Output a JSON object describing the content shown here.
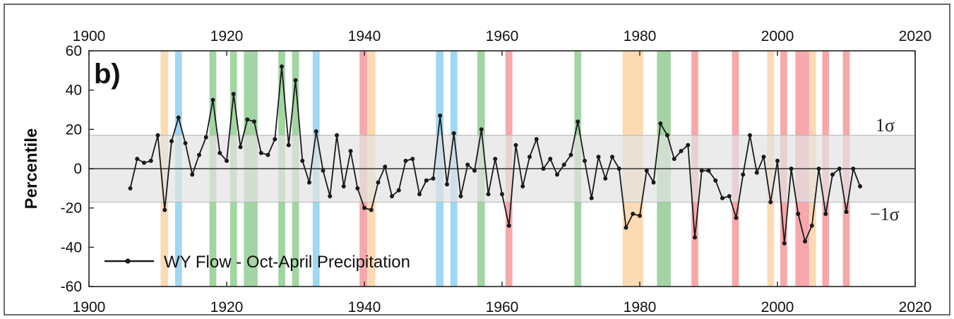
{
  "chart_data": {
    "type": "line",
    "panel_label": "b)",
    "ylabel": "Percentile",
    "xlim": [
      1900,
      2020
    ],
    "ylim": [
      -60,
      60
    ],
    "xticks": [
      1900,
      1920,
      1940,
      1960,
      1980,
      2000,
      2020
    ],
    "yticks": [
      -60,
      -40,
      -20,
      0,
      20,
      40,
      60
    ],
    "sigma_band": {
      "upper": 17,
      "lower": -17,
      "upper_label": "1σ",
      "lower_label": "−1σ",
      "color": "#e3e3e3"
    },
    "legend": {
      "placement": "bottom-left",
      "entries": [
        "WY Flow - Oct-April Precipitation"
      ]
    },
    "series": [
      {
        "name": "WY Flow - Oct-April Precipitation",
        "color": "#1a1a1a",
        "x": [
          1906,
          1907,
          1908,
          1909,
          1910,
          1911,
          1912,
          1913,
          1914,
          1915,
          1916,
          1917,
          1918,
          1919,
          1920,
          1921,
          1922,
          1923,
          1924,
          1925,
          1926,
          1927,
          1928,
          1929,
          1930,
          1931,
          1932,
          1933,
          1934,
          1935,
          1936,
          1937,
          1938,
          1939,
          1940,
          1941,
          1942,
          1943,
          1944,
          1945,
          1946,
          1947,
          1948,
          1949,
          1950,
          1951,
          1952,
          1953,
          1954,
          1955,
          1956,
          1957,
          1958,
          1959,
          1960,
          1961,
          1962,
          1963,
          1964,
          1965,
          1966,
          1967,
          1968,
          1969,
          1970,
          1971,
          1972,
          1973,
          1974,
          1975,
          1976,
          1977,
          1978,
          1979,
          1980,
          1981,
          1982,
          1983,
          1984,
          1985,
          1986,
          1987,
          1988,
          1989,
          1990,
          1991,
          1992,
          1993,
          1994,
          1995,
          1996,
          1997,
          1998,
          1999,
          2000,
          2001,
          2002,
          2003,
          2004,
          2005,
          2006,
          2007,
          2008,
          2009,
          2010,
          2011,
          2012
        ],
        "values": [
          -10,
          5,
          3,
          4,
          17,
          -21,
          14,
          26,
          13,
          -3,
          7,
          16,
          35,
          8,
          4,
          38,
          11,
          25,
          24,
          8,
          7,
          15,
          52,
          12,
          45,
          4,
          -7,
          19,
          -1,
          -14,
          17,
          -9,
          9,
          -10,
          -20,
          -21,
          -7,
          1,
          -14,
          -11,
          4,
          5,
          -13,
          -6,
          -5,
          27,
          -8,
          18,
          -14,
          2,
          -1,
          20,
          -13,
          5,
          -13,
          -29,
          12,
          -9,
          6,
          15,
          0,
          5,
          -3,
          2,
          7,
          24,
          4,
          -15,
          6,
          -5,
          6,
          0,
          -30,
          -23,
          -24,
          -1,
          -7,
          23,
          17,
          5,
          9,
          12,
          -35,
          -1,
          -1,
          -6,
          -15,
          -14,
          -25,
          -3,
          17,
          -2,
          6,
          -17,
          4,
          -38,
          0,
          -23,
          -37,
          -29,
          0,
          -23,
          -3,
          0,
          -22,
          0,
          -9
        ]
      }
    ],
    "event_bars": [
      {
        "start": 1910.4,
        "end": 1911.5,
        "color": "#fcd3a6"
      },
      {
        "start": 1912.5,
        "end": 1913.5,
        "color": "#8fd0f0"
      },
      {
        "start": 1917.5,
        "end": 1918.5,
        "color": "#93cc93"
      },
      {
        "start": 1920.5,
        "end": 1921.5,
        "color": "#93cc93"
      },
      {
        "start": 1922.5,
        "end": 1924.5,
        "color": "#93cc93"
      },
      {
        "start": 1927.5,
        "end": 1928.5,
        "color": "#93cc93"
      },
      {
        "start": 1929.5,
        "end": 1930.5,
        "color": "#93cc93"
      },
      {
        "start": 1932.5,
        "end": 1933.5,
        "color": "#8fd0f0"
      },
      {
        "start": 1939.3,
        "end": 1940.4,
        "color": "#f4999c"
      },
      {
        "start": 1940.4,
        "end": 1941.6,
        "color": "#fcd3a6"
      },
      {
        "start": 1950.4,
        "end": 1951.5,
        "color": "#8fd0f0"
      },
      {
        "start": 1952.5,
        "end": 1953.5,
        "color": "#8fd0f0"
      },
      {
        "start": 1956.4,
        "end": 1957.5,
        "color": "#93cc93"
      },
      {
        "start": 1960.5,
        "end": 1961.5,
        "color": "#f4999c"
      },
      {
        "start": 1970.5,
        "end": 1971.5,
        "color": "#93cc93"
      },
      {
        "start": 1977.5,
        "end": 1980.5,
        "color": "#fcd3a6"
      },
      {
        "start": 1982.5,
        "end": 1984.5,
        "color": "#93cc93"
      },
      {
        "start": 1987.5,
        "end": 1988.5,
        "color": "#f4999c"
      },
      {
        "start": 1993.4,
        "end": 1994.4,
        "color": "#f4999c"
      },
      {
        "start": 1998.5,
        "end": 1999.5,
        "color": "#fcd3a6"
      },
      {
        "start": 2000.4,
        "end": 2001.4,
        "color": "#f4999c"
      },
      {
        "start": 2002.6,
        "end": 2004.6,
        "color": "#f4999c"
      },
      {
        "start": 2004.6,
        "end": 2005.6,
        "color": "#fcd3a6"
      },
      {
        "start": 2006.5,
        "end": 2007.5,
        "color": "#f4999c"
      },
      {
        "start": 2009.5,
        "end": 2010.5,
        "color": "#f4999c"
      }
    ]
  }
}
